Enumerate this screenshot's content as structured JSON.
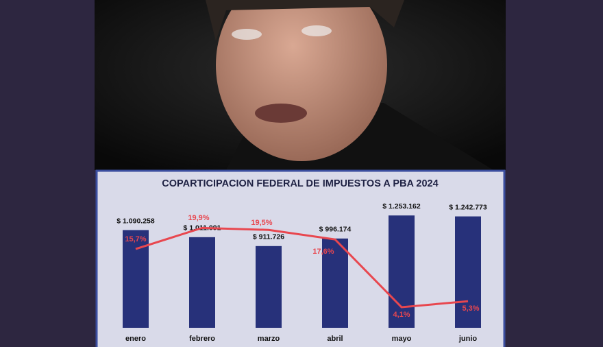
{
  "chart_data": {
    "type": "bar-line",
    "title": "COPARTICIPACION FEDERAL DE IMPUESTOS A PBA 2024",
    "categories": [
      "enero",
      "febrero",
      "marzo",
      "abril",
      "mayo",
      "junio"
    ],
    "series": [
      {
        "type": "bar",
        "color": "#27317a",
        "values": [
          1090258,
          1011091,
          911726,
          996174,
          1253162,
          1242773
        ],
        "value_labels": [
          "$ 1.090.258",
          "$ 1.011.091",
          "$ 911.726",
          "$ 996.174",
          "$ 1.253.162",
          "$ 1.242.773"
        ]
      },
      {
        "type": "line",
        "axis": "y2",
        "color": "#e8474f",
        "values": [
          15.7,
          19.9,
          19.5,
          17.6,
          4.1,
          5.3
        ],
        "value_labels": [
          "15,7%",
          "19,9%",
          "19,5%",
          "17,6%",
          "4,1%",
          "5,3%"
        ]
      }
    ],
    "ylim": [
      0,
      1400000
    ],
    "y2lim": [
      0,
      25
    ]
  }
}
